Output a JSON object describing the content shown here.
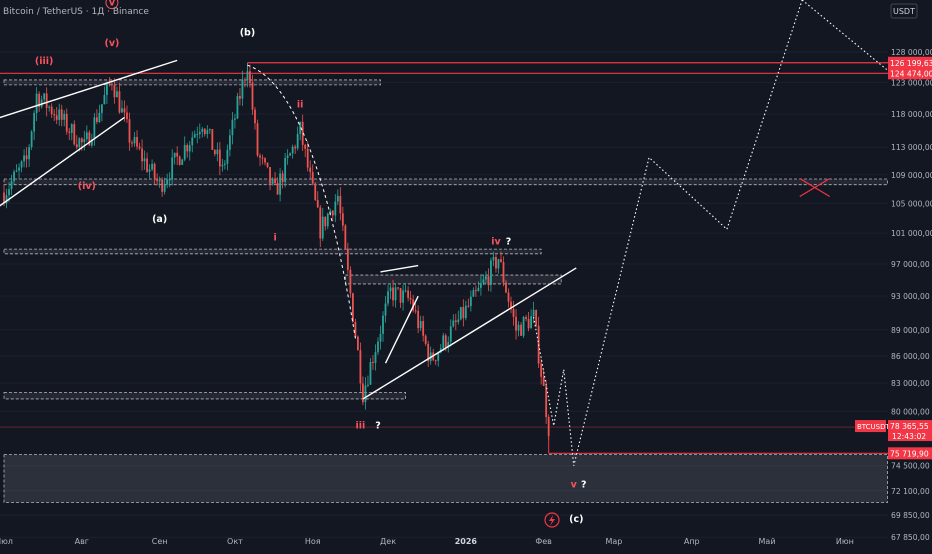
{
  "header": {
    "symbol_title": "Bitcoin / TetherUS · 1Д · Binance",
    "currency_badge": "USDT"
  },
  "colors": {
    "background": "#131722",
    "up": "#26a69a",
    "down": "#ef5350",
    "level": "#f23645",
    "dashed_zone": "#b2b5be",
    "white_line": "#ffffff",
    "label_red": "#f7525f",
    "projection": "#ffffff"
  },
  "chart_data": {
    "type": "candlestick",
    "y_axis": {
      "scale": "log",
      "range": [
        66900,
        137000
      ],
      "ticks": [
        128000,
        123000,
        118000,
        113000,
        109000,
        105000,
        101000,
        97000,
        93000,
        89000,
        86000,
        83000,
        80000,
        74500,
        72100,
        69850,
        67850
      ],
      "tick_labels": [
        "128 000,00",
        "123 000,00",
        "118 000,00",
        "113 000,00",
        "109 000,00",
        "105 000,00",
        "101 000,00",
        "97 000,00",
        "93 000,00",
        "89 000,00",
        "86 000,00",
        "83 000,00",
        "80 000,00",
        "74 500,00",
        "72 100,00",
        "69 850,00",
        "67 850,00"
      ]
    },
    "x_axis": {
      "labels": [
        "Июл",
        "Авг",
        "Сен",
        "Окт",
        "Ноя",
        "Дек",
        "2026",
        "Фев",
        "Мар",
        "Апр",
        "Май",
        "Июн"
      ],
      "label_dates": [
        "2025-07-01",
        "2025-08-01",
        "2025-09-01",
        "2025-10-01",
        "2025-11-01",
        "2025-12-01",
        "2026-01-01",
        "2026-02-01",
        "2026-03-01",
        "2026-04-01",
        "2026-05-01",
        "2026-06-01"
      ]
    },
    "price_path": [
      {
        "date": "2025-07-01",
        "price": 106500
      },
      {
        "date": "2025-07-10",
        "price": 111000
      },
      {
        "date": "2025-07-14",
        "price": 121000
      },
      {
        "date": "2025-07-22",
        "price": 118000
      },
      {
        "date": "2025-08-02",
        "price": 113000
      },
      {
        "date": "2025-08-13",
        "price": 123500
      },
      {
        "date": "2025-08-20",
        "price": 114500
      },
      {
        "date": "2025-09-01",
        "price": 107500
      },
      {
        "date": "2025-09-18",
        "price": 117000
      },
      {
        "date": "2025-09-26",
        "price": 109500
      },
      {
        "date": "2025-10-06",
        "price": 126199
      },
      {
        "date": "2025-10-10",
        "price": 112000
      },
      {
        "date": "2025-10-17",
        "price": 106500
      },
      {
        "date": "2025-10-27",
        "price": 115500
      },
      {
        "date": "2025-11-04",
        "price": 101500
      },
      {
        "date": "2025-11-11",
        "price": 106000
      },
      {
        "date": "2025-11-21",
        "price": 82000
      },
      {
        "date": "2025-12-02",
        "price": 93500
      },
      {
        "date": "2025-12-10",
        "price": 92500
      },
      {
        "date": "2025-12-18",
        "price": 85500
      },
      {
        "date": "2026-01-05",
        "price": 93000
      },
      {
        "date": "2026-01-14",
        "price": 97800
      },
      {
        "date": "2026-01-21",
        "price": 89000
      },
      {
        "date": "2026-01-28",
        "price": 90500
      },
      {
        "date": "2026-02-03",
        "price": 78365
      }
    ],
    "projection_path": [
      {
        "date": "2026-01-28",
        "price": 90500
      },
      {
        "date": "2026-02-05",
        "price": 78500
      },
      {
        "date": "2026-02-09",
        "price": 84500
      },
      {
        "date": "2026-02-13",
        "price": 74500
      },
      {
        "date": "2026-03-15",
        "price": 111500
      },
      {
        "date": "2026-04-15",
        "price": 101500
      },
      {
        "date": "2026-05-15",
        "price": 137000
      }
    ],
    "horizontal_levels": [
      {
        "price": 126199.63,
        "label": "126 199,63"
      },
      {
        "price": 124474.0,
        "label": "124 474,00"
      },
      {
        "price": 75719.9,
        "label": "75 719,90"
      }
    ],
    "last_price": {
      "symbol": "BTCUSDT",
      "price": "78 365,55",
      "countdown": "12:43:02"
    },
    "support_zones": [
      {
        "low": 122600,
        "high": 123400,
        "from": "2025-07-01",
        "to": "2025-11-28"
      },
      {
        "low": 107600,
        "high": 108400,
        "from": "2025-07-01",
        "to": "2026-06-18"
      },
      {
        "low": 98300,
        "high": 98900,
        "from": "2025-07-01",
        "to": "2026-01-31"
      },
      {
        "low": 94500,
        "high": 95600,
        "from": "2025-11-14",
        "to": "2026-02-08"
      },
      {
        "low": 81300,
        "high": 82000,
        "from": "2025-07-01",
        "to": "2025-12-08"
      },
      {
        "low": 71000,
        "high": 75600,
        "from": "2025-07-01",
        "to": "2026-06-18"
      }
    ],
    "wave_labels": [
      {
        "text": "(iii)",
        "date": "2025-07-17",
        "price": 126000,
        "color": "red"
      },
      {
        "text": "(v)",
        "date": "2025-08-13",
        "price": 129000,
        "color": "red"
      },
      {
        "text": "v",
        "date": "2025-08-13",
        "price": 136000,
        "color": "red",
        "circled": true
      },
      {
        "text": "(iv)",
        "date": "2025-08-03",
        "price": 107000,
        "color": "red"
      },
      {
        "text": "(a)",
        "date": "2025-09-01",
        "price": 102500,
        "color": "white"
      },
      {
        "text": "(b)",
        "date": "2025-10-06",
        "price": 130800,
        "color": "white"
      },
      {
        "text": "ii",
        "date": "2025-10-27",
        "price": 119000,
        "color": "red"
      },
      {
        "text": "i",
        "date": "2025-10-17",
        "price": 100000,
        "color": "red"
      },
      {
        "text": "iv",
        "date": "2026-01-13",
        "price": 99500,
        "color": "red"
      },
      {
        "text": "?",
        "date": "2026-01-18",
        "price": 99500,
        "color": "white"
      },
      {
        "text": "iii",
        "date": "2025-11-20",
        "price": 78200,
        "color": "red"
      },
      {
        "text": "?",
        "date": "2025-11-27",
        "price": 78200,
        "color": "white"
      },
      {
        "text": "v",
        "date": "2026-02-13",
        "price": 72400,
        "color": "red"
      },
      {
        "text": "?",
        "date": "2026-02-17",
        "price": 72400,
        "color": "white"
      },
      {
        "text": "(c)",
        "date": "2026-02-14",
        "price": 69200,
        "color": "white"
      }
    ],
    "trendlines": [
      {
        "from": {
          "date": "2025-06-01",
          "price": 114000
        },
        "to": {
          "date": "2025-09-08",
          "price": 126600
        }
      },
      {
        "from": {
          "date": "2025-06-01",
          "price": 98000
        },
        "to": {
          "date": "2025-08-18",
          "price": 117500
        }
      },
      {
        "from": {
          "date": "2025-11-21",
          "price": 81300
        },
        "to": {
          "date": "2026-02-14",
          "price": 96500
        }
      },
      {
        "from": {
          "date": "2025-11-28",
          "price": 96000
        },
        "to": {
          "date": "2025-12-13",
          "price": 96800
        }
      },
      {
        "from": {
          "date": "2025-11-30",
          "price": 85200
        },
        "to": {
          "date": "2025-12-13",
          "price": 93000
        }
      }
    ]
  }
}
